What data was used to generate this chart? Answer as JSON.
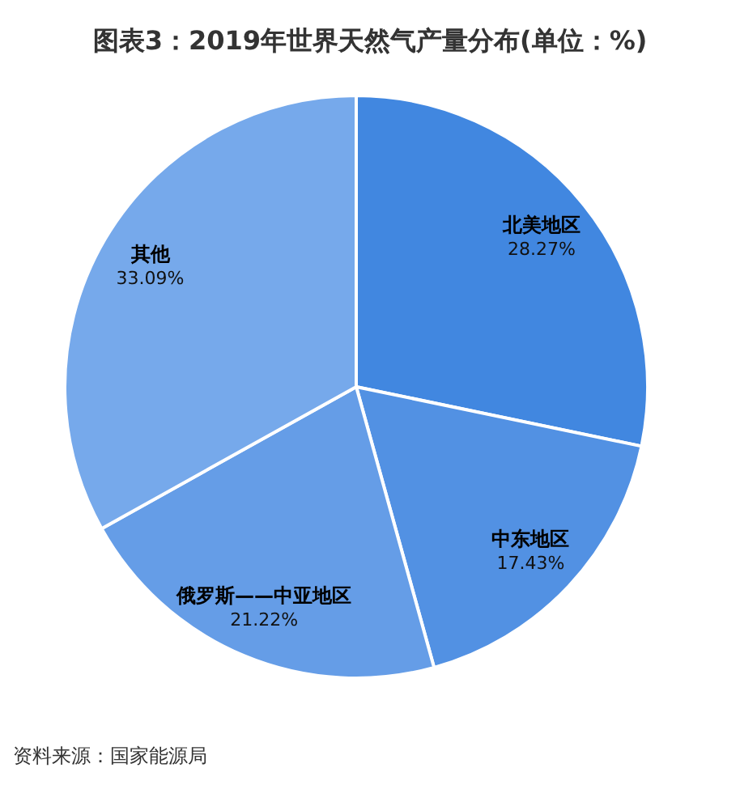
{
  "chart_data": {
    "type": "pie",
    "title": "图表3：2019年世界天然气产量分布(单位：%)",
    "categories": [
      "北美地区",
      "中东地区",
      "俄罗斯——中亚地区",
      "其他"
    ],
    "values": [
      28.27,
      17.43,
      21.22,
      33.09
    ],
    "value_labels": [
      "28.27%",
      "17.43%",
      "21.22%",
      "33.09%"
    ],
    "colors": [
      "#4187e0",
      "#5291e3",
      "#659de7",
      "#76a9eb"
    ],
    "legend": false,
    "annotations": [
      "资料来源：国家能源局"
    ]
  }
}
